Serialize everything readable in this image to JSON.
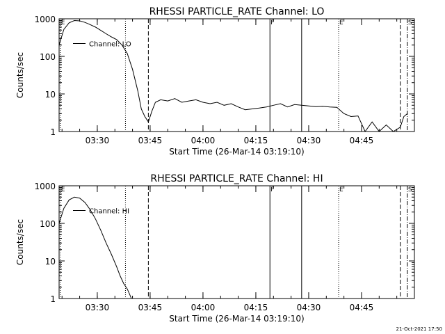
{
  "footer": {
    "timestamp": "21-Oct-2021 17:50"
  },
  "chart_data": [
    {
      "type": "line",
      "title": "RHESSI PARTICLE_RATE Channel: LO",
      "xlabel": "Start Time (26-Mar-14 03:19:10)",
      "ylabel": "Counts/sec",
      "yscale": "log",
      "ylim": [
        1,
        1000
      ],
      "y_ticks": [
        "1",
        "10",
        "100",
        "1000"
      ],
      "x_ticks": [
        "03:30",
        "03:45",
        "04:00",
        "04:15",
        "04:30",
        "04:45"
      ],
      "xlim": [
        "03:19:10",
        "05:00:00"
      ],
      "legend": {
        "label": "Channel: LO",
        "position": "top-left"
      },
      "markers": [
        {
          "label": "E",
          "time": "03:19:30",
          "style": "dotted"
        },
        {
          "label": "",
          "time": "03:38:00",
          "style": "dotted"
        },
        {
          "label": "",
          "time": "03:44:30",
          "style": "dashed"
        },
        {
          "label": "F",
          "time": "04:19:00",
          "style": "solid"
        },
        {
          "label": "",
          "time": "04:28:00",
          "style": "solid"
        },
        {
          "label": "E",
          "time": "04:38:30",
          "style": "dotted"
        },
        {
          "label": "",
          "time": "04:56:00",
          "style": "dashed"
        },
        {
          "label": "S",
          "time": "04:58:00",
          "style": "dashdot"
        }
      ],
      "series": [
        {
          "name": "Channel: LO",
          "x": [
            "03:19:10",
            "03:20:30",
            "03:22:00",
            "03:23:30",
            "03:25:00",
            "03:26:30",
            "03:28:00",
            "03:29:30",
            "03:31:00",
            "03:32:30",
            "03:34:00",
            "03:35:30",
            "03:37:00",
            "03:38:30",
            "03:40:00",
            "03:41:30",
            "03:42:30",
            "03:43:30",
            "03:44:30",
            "03:45:30",
            "03:46:30",
            "03:48:00",
            "03:50:00",
            "03:52:00",
            "03:54:00",
            "03:56:00",
            "03:58:00",
            "04:00:00",
            "04:02:00",
            "04:04:00",
            "04:06:00",
            "04:08:00",
            "04:10:00",
            "04:12:00",
            "04:14:00",
            "04:16:00",
            "04:18:00",
            "04:20:00",
            "04:22:00",
            "04:24:00",
            "04:26:00",
            "04:28:00",
            "04:30:00",
            "04:32:00",
            "04:34:00",
            "04:36:00",
            "04:38:00",
            "04:40:00",
            "04:42:00",
            "04:44:00",
            "04:46:00",
            "04:48:00",
            "04:50:00",
            "04:52:00",
            "04:54:00",
            "04:56:00",
            "04:57:00",
            "04:58:00"
          ],
          "values": [
            200,
            520,
            780,
            900,
            880,
            800,
            700,
            600,
            490,
            400,
            330,
            280,
            200,
            120,
            45,
            12,
            4,
            2.5,
            1.8,
            3.5,
            6,
            7,
            6.5,
            7.5,
            6,
            6.5,
            7,
            6,
            5.5,
            6,
            5,
            5.5,
            4.5,
            3.8,
            4,
            4.2,
            4.5,
            5,
            5.5,
            4.5,
            5.2,
            5,
            4.8,
            4.6,
            4.7,
            4.5,
            4.4,
            3,
            2.5,
            2.6,
            1,
            1.8,
            1,
            1.5,
            1,
            1.3,
            2.5,
            3
          ]
        }
      ]
    },
    {
      "type": "line",
      "title": "RHESSI PARTICLE_RATE Channel: HI",
      "xlabel": "Start Time (26-Mar-14 03:19:10)",
      "ylabel": "Counts/sec",
      "yscale": "log",
      "ylim": [
        1,
        1000
      ],
      "y_ticks": [
        "1",
        "10",
        "100",
        "1000"
      ],
      "x_ticks": [
        "03:30",
        "03:45",
        "04:00",
        "04:15",
        "04:30",
        "04:45"
      ],
      "xlim": [
        "03:19:10",
        "05:00:00"
      ],
      "legend": {
        "label": "Channel: HI",
        "position": "top-left"
      },
      "markers": [
        {
          "label": "E",
          "time": "03:19:30",
          "style": "dotted"
        },
        {
          "label": "",
          "time": "03:38:00",
          "style": "dotted"
        },
        {
          "label": "",
          "time": "03:44:30",
          "style": "dashed"
        },
        {
          "label": "F",
          "time": "04:19:00",
          "style": "solid"
        },
        {
          "label": "",
          "time": "04:28:00",
          "style": "solid"
        },
        {
          "label": "E",
          "time": "04:38:30",
          "style": "dotted"
        },
        {
          "label": "",
          "time": "04:56:00",
          "style": "dashed"
        },
        {
          "label": "S",
          "time": "04:58:00",
          "style": "dashdot"
        }
      ],
      "series": [
        {
          "name": "Channel: HI",
          "x": [
            "03:19:10",
            "03:20:30",
            "03:22:00",
            "03:23:30",
            "03:25:00",
            "03:26:30",
            "03:28:00",
            "03:29:30",
            "03:31:00",
            "03:32:30",
            "03:34:00",
            "03:35:30",
            "03:36:30",
            "03:37:30",
            "03:38:30",
            "03:39:10",
            "03:39:40"
          ],
          "values": [
            100,
            250,
            420,
            500,
            470,
            360,
            230,
            130,
            65,
            30,
            15,
            7,
            4,
            2.5,
            1.8,
            1.3,
            1
          ]
        }
      ]
    }
  ]
}
